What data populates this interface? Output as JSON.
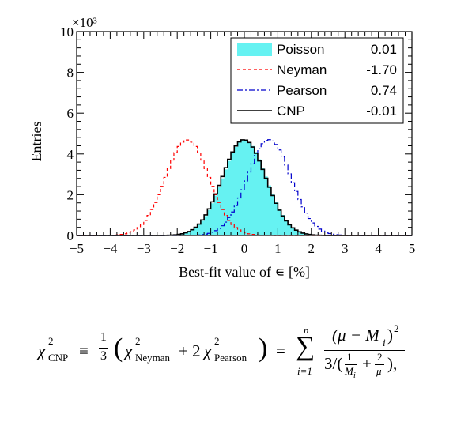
{
  "chart_data": {
    "type": "histogram",
    "title": "",
    "xlabel": "Best-fit value of ∊ [%]",
    "ylabel": "Entries",
    "y_multiplier": "×10³",
    "xlim": [
      -5,
      5
    ],
    "ylim": [
      0,
      10
    ],
    "xticks": [
      -5,
      -4,
      -3,
      -2,
      -1,
      0,
      1,
      2,
      3,
      4,
      5
    ],
    "yticks": [
      0,
      2,
      4,
      6,
      8,
      10
    ],
    "grid": false,
    "legend_position": "top-right",
    "series": [
      {
        "name": "Poisson",
        "value_label": "0.01",
        "mean": 0.01,
        "sigma": 0.65,
        "peak": 4.7,
        "style": "filled",
        "color": "#66f2f2"
      },
      {
        "name": "Neyman",
        "value_label": "-1.70",
        "mean": -1.7,
        "sigma": 0.65,
        "peak": 4.7,
        "style": "dashed",
        "color": "#ff0000"
      },
      {
        "name": "Pearson",
        "value_label": "0.74",
        "mean": 0.74,
        "sigma": 0.65,
        "peak": 4.7,
        "style": "dash-dot",
        "color": "#0000cc"
      },
      {
        "name": "CNP",
        "value_label": "-0.01",
        "mean": -0.01,
        "sigma": 0.65,
        "peak": 4.7,
        "style": "solid",
        "color": "#000000"
      }
    ]
  },
  "formula": {
    "chi": "χ",
    "sq": "2",
    "cnp": "CNP",
    "equiv": "≡",
    "one": "1",
    "three": "3",
    "lparen": "(",
    "rparen": ")",
    "neyman": "Neyman",
    "plus_two": "+ 2",
    "pearson": "Pearson",
    "eq": "=",
    "sum": "∑",
    "n": "n",
    "i_eq_1": "i=1",
    "numerator": "(μ − M",
    "num_i": "i",
    "num_close": ")",
    "den_prefix": "3/(",
    "den_one": "1",
    "den_Mi": "M",
    "den_i": "i",
    "den_plus": "+",
    "den_two": "2",
    "den_mu": "μ",
    "den_close": "),"
  }
}
